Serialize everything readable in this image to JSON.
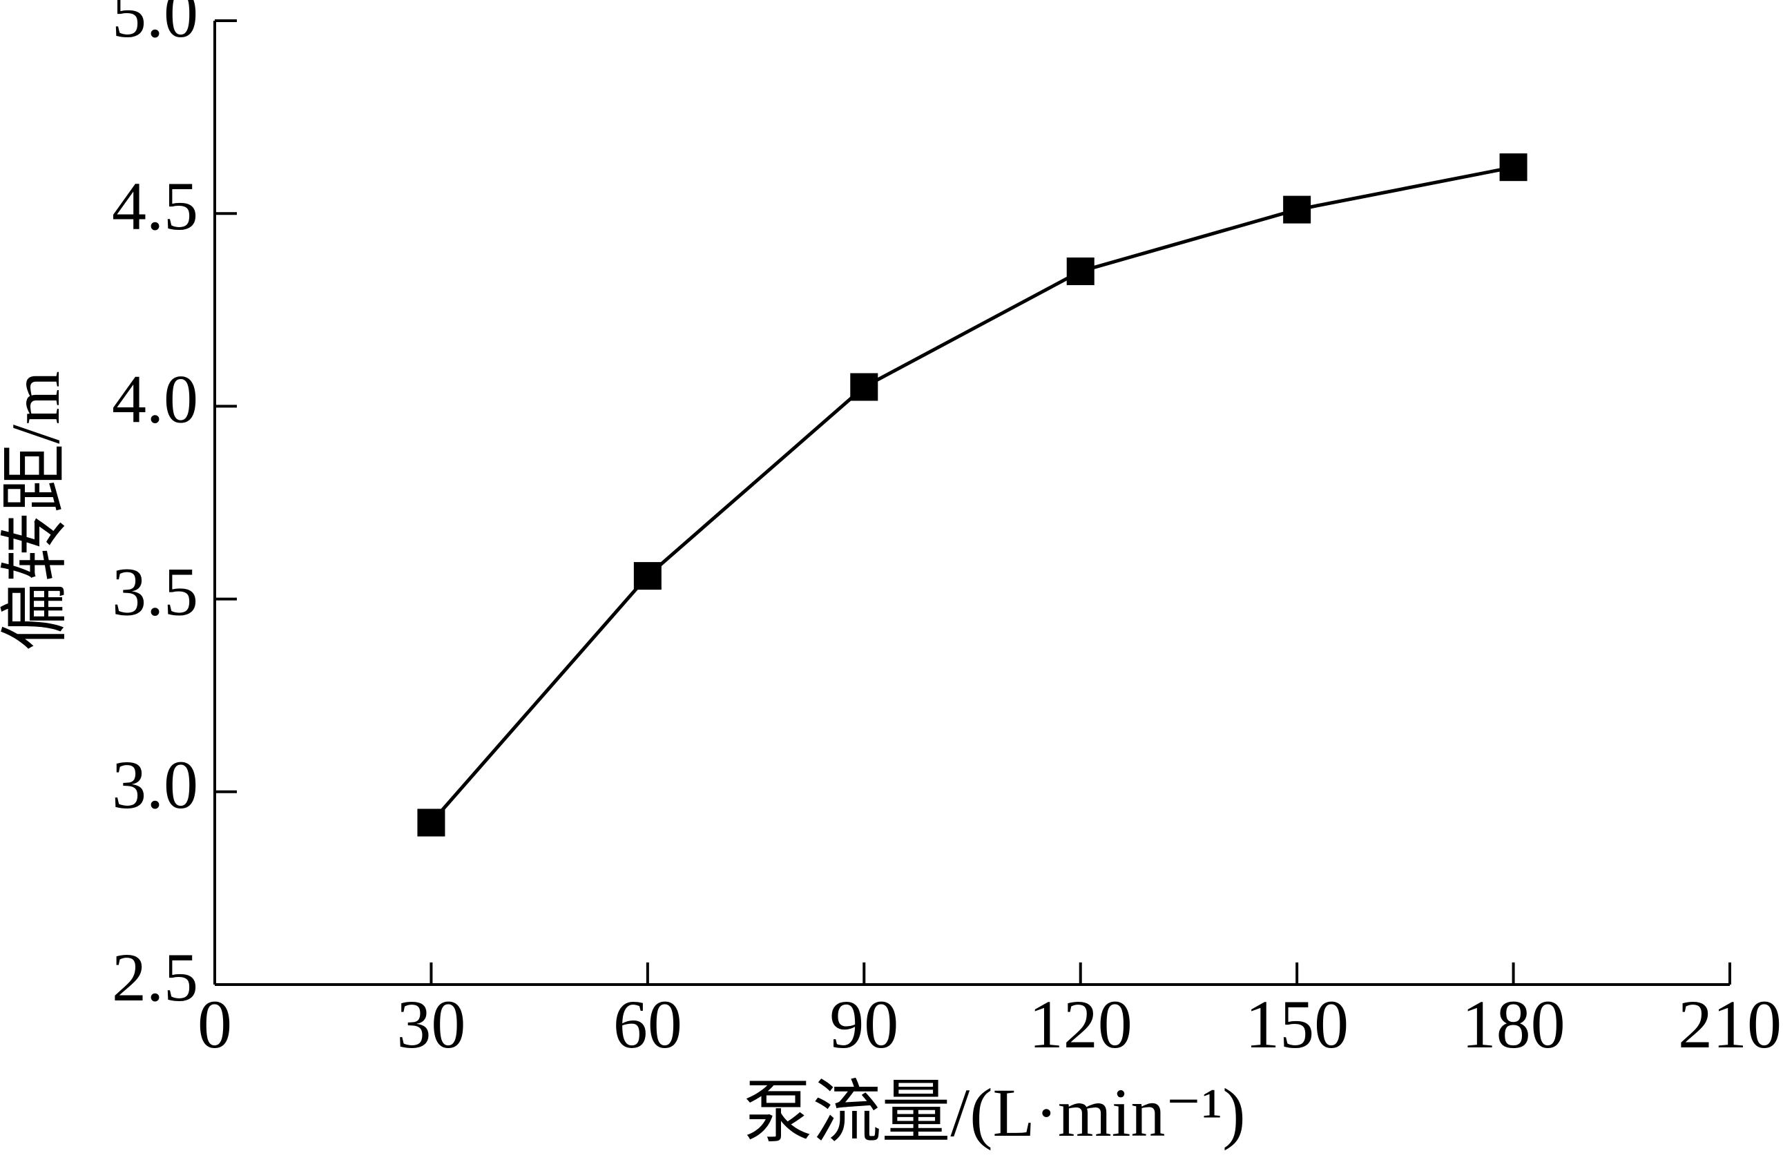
{
  "chart_data": {
    "type": "line",
    "x_label": "泵流量/(L·min⁻¹)",
    "y_label": "偏转距/m",
    "x": [
      30,
      60,
      90,
      120,
      150,
      180
    ],
    "series": [
      {
        "color": "#000000",
        "values": [
          2.92,
          3.56,
          4.05,
          4.35,
          4.51,
          4.62
        ]
      }
    ],
    "xlim": [
      0,
      210
    ],
    "xticks": [
      0,
      30,
      60,
      90,
      120,
      150,
      180,
      210
    ],
    "ylim": [
      2.5,
      5.0
    ],
    "yticks": [
      2.5,
      {
        "value": 3,
        "label": "3.0"
      },
      3.5,
      {
        "value": 4,
        "label": "4.0"
      },
      4.5,
      {
        "value": 5,
        "label": "5.0"
      }
    ]
  }
}
